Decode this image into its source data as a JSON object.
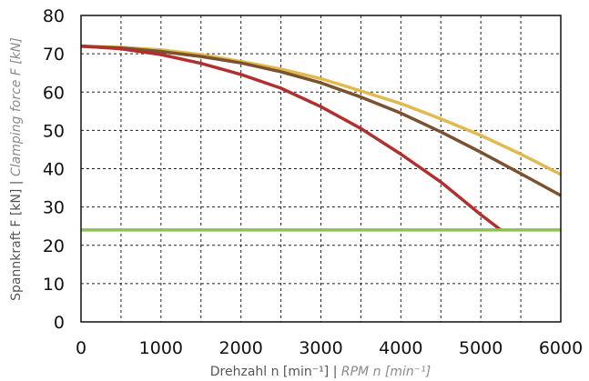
{
  "chart_data": {
    "type": "line",
    "xlabel_main": "Drehzahl n [min⁻¹] | ",
    "xlabel_alt": "RPM n [min⁻¹]",
    "ylabel_main": "Spannkraft F [kN] | ",
    "ylabel_alt": "Clamping force F [kN]",
    "xlim": [
      0,
      6000
    ],
    "ylim": [
      0,
      80
    ],
    "xticks": [
      0,
      1000,
      2000,
      3000,
      4000,
      5000,
      6000
    ],
    "yticks": [
      0,
      10,
      20,
      30,
      40,
      50,
      60,
      70,
      80
    ],
    "grid": true,
    "x_gridlines": [
      0,
      500,
      1000,
      1500,
      2000,
      2500,
      3000,
      3500,
      4000,
      4500,
      5000,
      5500,
      6000
    ],
    "y_gridlines": [
      0,
      10,
      20,
      30,
      40,
      50,
      60,
      70,
      80
    ],
    "series": [
      {
        "color": "#e2b94f",
        "x": [
          0,
          500,
          1000,
          1500,
          2000,
          2500,
          3000,
          3500,
          4000,
          4500,
          5000,
          5500,
          6000
        ],
        "y": [
          72,
          71.7,
          71,
          69.8,
          68,
          66,
          63.5,
          60.3,
          57,
          53,
          48.7,
          43.8,
          38.5
        ]
      },
      {
        "color": "#7a5230",
        "x": [
          0,
          500,
          1000,
          1500,
          2000,
          2500,
          3000,
          3500,
          4000,
          4500,
          5000,
          5500,
          6000
        ],
        "y": [
          72,
          71.5,
          70.6,
          69.3,
          67.6,
          65.3,
          62.4,
          58.7,
          54.5,
          49.6,
          44.3,
          38.7,
          33
        ]
      },
      {
        "color": "#b03030",
        "x": [
          0,
          500,
          1000,
          1500,
          2000,
          2500,
          3000,
          3500,
          4000,
          4500,
          5000,
          5250
        ],
        "y": [
          72,
          71.3,
          69.8,
          67.5,
          64.6,
          61,
          56.2,
          50.5,
          43.8,
          36.5,
          28,
          24
        ]
      },
      {
        "color": "#8dc153",
        "x": [
          0,
          6000
        ],
        "y": [
          24,
          24
        ]
      }
    ]
  }
}
